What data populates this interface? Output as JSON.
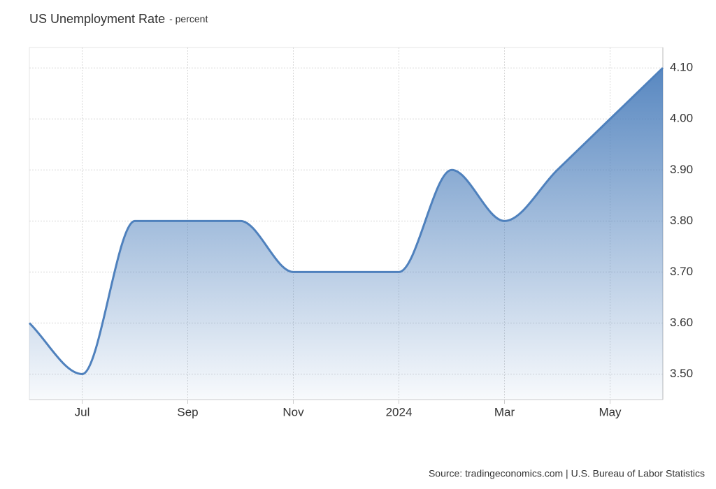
{
  "chart_data": {
    "type": "area",
    "title": "US Unemployment Rate",
    "subtitle": "- percent",
    "source": "Source: tradingeconomics.com | U.S. Bureau of Labor Statistics",
    "categories": [
      null,
      "Jul",
      null,
      "Sep",
      null,
      "Nov",
      null,
      "2024",
      null,
      "Mar",
      null,
      "May",
      null
    ],
    "values": [
      3.6,
      3.5,
      3.8,
      3.8,
      3.8,
      3.7,
      3.7,
      3.7,
      3.9,
      3.8,
      3.9,
      4.0,
      4.1
    ],
    "color": "#4f81bd",
    "ylim": [
      3.45,
      4.14
    ],
    "yticks": [
      {
        "value": 3.5,
        "label": "3.50"
      },
      {
        "value": 3.6,
        "label": "3.60"
      },
      {
        "value": 3.7,
        "label": "3.70"
      },
      {
        "value": 3.8,
        "label": "3.80"
      },
      {
        "value": 3.9,
        "label": "3.90"
      },
      {
        "value": 4.0,
        "label": "4.00"
      },
      {
        "value": 4.1,
        "label": "4.10"
      }
    ],
    "grid": true
  }
}
